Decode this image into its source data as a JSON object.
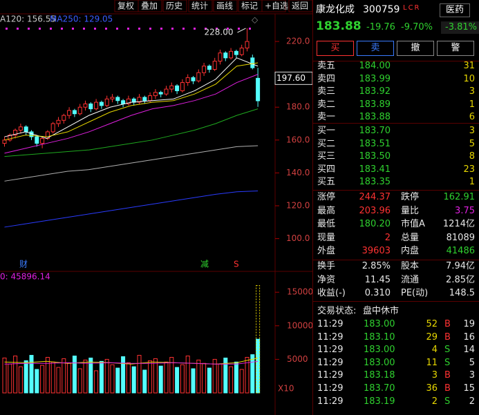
{
  "toolbar": [
    "复权",
    "叠加",
    "历史",
    "统计",
    "画线",
    "标记",
    "+自选",
    "返回"
  ],
  "chart_data": {
    "type": "candlestick",
    "ma_legend": [
      {
        "label": "A120: 156.55",
        "color": "#c8c8c8"
      },
      {
        "label": "MA250: 129.05",
        "color": "#3a5cff"
      }
    ],
    "ylim": [
      80.5,
      230.1
    ],
    "yticks": [
      {
        "value": 100,
        "label": "100.0"
      },
      {
        "value": 120,
        "label": "120.0"
      },
      {
        "value": 140,
        "label": "140.0"
      },
      {
        "value": 160,
        "label": "160.0"
      },
      {
        "value": 180,
        "label": "180.0"
      },
      {
        "value": 220,
        "label": "220.0"
      }
    ],
    "price_tag": {
      "value": 197.6,
      "label": "197.60"
    },
    "peak": {
      "value": 228,
      "label": "228.00"
    },
    "markers": [
      {
        "label": "财",
        "color": "#3a7bff"
      },
      {
        "label": "减",
        "color": "#2fd12f"
      },
      {
        "label": "S",
        "color": "#ff3232"
      }
    ],
    "candles": [
      [
        158,
        162,
        156,
        160
      ],
      [
        160,
        164,
        159,
        163
      ],
      [
        163,
        167,
        161,
        166
      ],
      [
        166,
        170,
        164,
        168
      ],
      [
        168,
        169,
        163,
        165
      ],
      [
        165,
        166,
        160,
        162
      ],
      [
        162,
        163,
        156,
        158
      ],
      [
        158,
        162,
        155,
        161
      ],
      [
        161,
        166,
        160,
        165
      ],
      [
        165,
        171,
        164,
        170
      ],
      [
        170,
        174,
        168,
        172
      ],
      [
        172,
        176,
        170,
        175
      ],
      [
        175,
        180,
        173,
        178
      ],
      [
        178,
        179,
        174,
        176
      ],
      [
        176,
        182,
        175,
        180
      ],
      [
        180,
        184,
        178,
        182
      ],
      [
        182,
        183,
        177,
        179
      ],
      [
        179,
        185,
        178,
        183
      ],
      [
        183,
        184,
        179,
        181
      ],
      [
        181,
        187,
        180,
        185
      ],
      [
        185,
        188,
        183,
        186
      ],
      [
        186,
        187,
        182,
        184
      ],
      [
        184,
        185,
        180,
        182
      ],
      [
        182,
        187,
        181,
        185
      ],
      [
        185,
        186,
        181,
        183
      ],
      [
        183,
        188,
        182,
        186
      ],
      [
        186,
        187,
        182,
        184
      ],
      [
        184,
        189,
        183,
        187
      ],
      [
        187,
        191,
        185,
        189
      ],
      [
        189,
        190,
        186,
        188
      ],
      [
        188,
        193,
        187,
        191
      ],
      [
        191,
        195,
        189,
        193
      ],
      [
        193,
        194,
        188,
        190
      ],
      [
        190,
        197,
        189,
        195
      ],
      [
        195,
        200,
        193,
        198
      ],
      [
        198,
        199,
        194,
        196
      ],
      [
        196,
        203,
        195,
        201
      ],
      [
        201,
        207,
        199,
        205
      ],
      [
        205,
        206,
        201,
        203
      ],
      [
        203,
        210,
        202,
        208
      ],
      [
        208,
        215,
        206,
        213
      ],
      [
        213,
        214,
        208,
        210
      ],
      [
        210,
        216,
        209,
        214
      ],
      [
        214,
        215,
        210,
        212
      ],
      [
        212,
        218,
        211,
        216
      ],
      [
        216,
        228,
        214,
        220
      ],
      [
        210,
        212,
        203,
        204
      ],
      [
        197.6,
        203.96,
        180.2,
        183.88
      ]
    ],
    "ma_lines": [
      {
        "color": "#ffffff",
        "values": [
          162,
          165,
          161,
          168,
          175,
          180,
          183,
          184,
          185,
          190,
          197,
          210,
          205
        ]
      },
      {
        "color": "#e8d800",
        "values": [
          160,
          163,
          162,
          165,
          171,
          177,
          181,
          183,
          184,
          188,
          194,
          205,
          207
        ]
      },
      {
        "color": "#e020e0",
        "values": [
          152,
          155,
          158,
          161,
          165,
          170,
          175,
          179,
          181,
          184,
          188,
          195,
          200
        ]
      },
      {
        "color": "#1faa1f",
        "values": [
          150,
          151,
          152,
          153,
          154,
          156,
          158,
          160,
          163,
          166,
          170,
          175,
          179
        ]
      },
      {
        "color": "#b0b0b0",
        "values": [
          135,
          137,
          139,
          141,
          142,
          144,
          146,
          148,
          150,
          152,
          154,
          156,
          156.55
        ]
      },
      {
        "color": "#2a3cff",
        "values": [
          107,
          109,
          111,
          113,
          115,
          117,
          119,
          121,
          123,
          125,
          127,
          128.5,
          129.05
        ]
      }
    ],
    "volume": {
      "label": "0: 45896.14",
      "ylim": [
        0,
        17900
      ],
      "yticks": [
        5000,
        10000,
        15000
      ],
      "unit": "X10",
      "values": [
        5200,
        4300,
        5500,
        3900,
        4800,
        5600,
        3500,
        4100,
        5300,
        4600,
        3800,
        5100,
        4400,
        5500,
        3600,
        4900,
        5200,
        3300,
        4700,
        5000,
        4200,
        3700,
        5400,
        4500,
        3900,
        5600,
        3400,
        4800,
        5100,
        4000,
        4600,
        5300,
        3800,
        4200,
        5500,
        3600,
        4900,
        4400,
        3700,
        5000,
        4300,
        5200,
        3900,
        4600,
        3500,
        5300,
        5700,
        8000
      ],
      "projected": 16000,
      "ma_lines": [
        {
          "color": "#e8d800",
          "values": [
            4600,
            4500,
            4700,
            4400,
            4600,
            4500,
            4300,
            4600,
            4500,
            4400,
            4300,
            4500,
            5200
          ]
        },
        {
          "color": "#e020e0",
          "values": [
            4300,
            4400,
            4400,
            4500,
            4400,
            4500,
            4400,
            4400,
            4500,
            4400,
            4300,
            4300,
            4700
          ]
        }
      ]
    }
  },
  "quote": {
    "name": "康龙化成",
    "code": "300759",
    "flags": "LCR",
    "sector": "医药",
    "sector_change": "-3.81%",
    "price": "183.88",
    "change": "-19.76",
    "change_pct": "-9.70%"
  },
  "buttons": [
    "买",
    "卖",
    "撤",
    "警"
  ],
  "asks": [
    [
      "卖五",
      "184.00",
      "31"
    ],
    [
      "卖四",
      "183.99",
      "10"
    ],
    [
      "卖三",
      "183.92",
      "3"
    ],
    [
      "卖二",
      "183.89",
      "1"
    ],
    [
      "卖一",
      "183.88",
      "6"
    ]
  ],
  "bids": [
    [
      "买一",
      "183.70",
      "3"
    ],
    [
      "买二",
      "183.51",
      "5"
    ],
    [
      "买三",
      "183.50",
      "8"
    ],
    [
      "买四",
      "183.41",
      "23"
    ],
    [
      "买五",
      "183.35",
      "1"
    ]
  ],
  "stats": [
    [
      "涨停",
      "244.37",
      "跌停",
      "162.91"
    ],
    [
      "最高",
      "203.96",
      "量比",
      "3.75"
    ],
    [
      "最低",
      "180.20",
      "市值A",
      "1214亿"
    ],
    [
      "现量",
      "2",
      "总量",
      "81089"
    ],
    [
      "外盘",
      "39603",
      "内盘",
      "41486"
    ]
  ],
  "stats2": [
    [
      "换手",
      "2.85%",
      "股本",
      "7.94亿"
    ],
    [
      "净资",
      "11.45",
      "流通",
      "2.85亿"
    ],
    [
      "收益(-)",
      "0.310",
      "PE(动)",
      "148.5"
    ]
  ],
  "status": {
    "label": "交易状态:",
    "value": "盘中休市"
  },
  "ticks": [
    [
      "11:29",
      "183.00",
      "52",
      "B",
      "19"
    ],
    [
      "11:29",
      "183.10",
      "29",
      "B",
      "16"
    ],
    [
      "11:29",
      "183.00",
      "4",
      "S",
      "14"
    ],
    [
      "11:29",
      "183.00",
      "11",
      "S",
      "5"
    ],
    [
      "11:29",
      "183.18",
      "3",
      "B",
      "3"
    ],
    [
      "11:29",
      "183.70",
      "36",
      "B",
      "15"
    ],
    [
      "11:29",
      "183.19",
      "2",
      "S",
      "2"
    ]
  ]
}
